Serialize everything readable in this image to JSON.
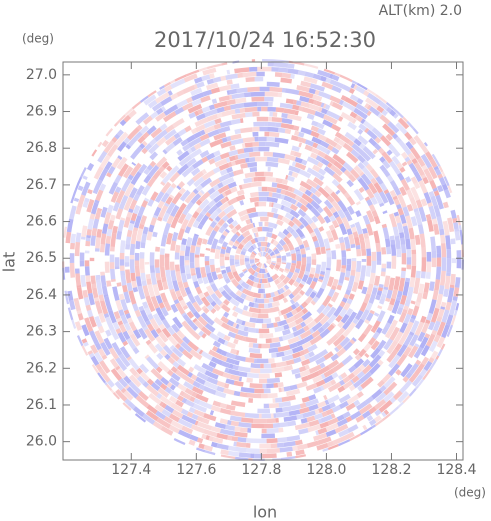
{
  "chart_data": {
    "type": "radar",
    "title": "2017/10/24 16:52:30",
    "subtitle": "ALT(km) 2.0",
    "x_label": "lon",
    "x_unit": "(deg)",
    "y_label": "lat",
    "y_unit": "(deg)",
    "xlim": [
      127.19,
      128.42
    ],
    "ylim": [
      25.95,
      27.035
    ],
    "xticks": [
      127.4,
      127.6,
      127.8,
      {
        "value": 128.0,
        "label": "128.0"
      },
      128.2,
      128.4
    ],
    "yticks": [
      {
        "value": 26.0,
        "label": "26.0"
      },
      26.1,
      26.2,
      26.3,
      26.4,
      26.5,
      26.6,
      26.7,
      26.8,
      26.9,
      {
        "value": 27.0,
        "label": "27.0"
      }
    ],
    "colors": [
      "#f4a8a8",
      "#a8a8f4"
    ]
  }
}
